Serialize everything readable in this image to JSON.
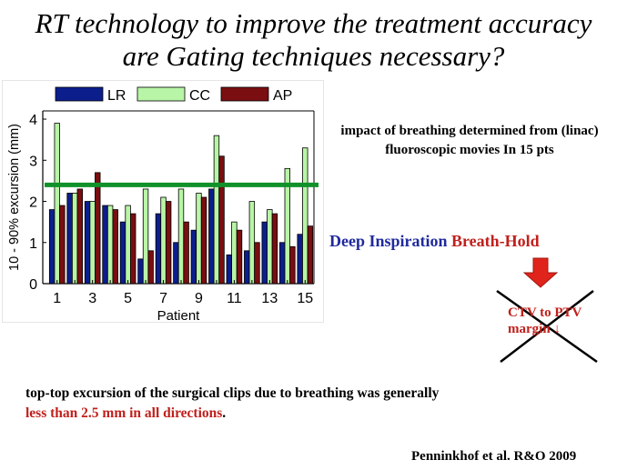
{
  "title": {
    "line1": "RT technology to improve the treatment accuracy",
    "line2": "are Gating techniques necessary?"
  },
  "impact_note": "impact of  breathing  determined from (linac) fluoroscopic movies In 15 pts",
  "dibh": {
    "part1": "Deep Inspiration",
    "part2": "Breath-Hold"
  },
  "ctv_note": "CTV to PTV margin ↓",
  "excursion_note": {
    "part1": "top-top excursion of the surgical clips due to breathing was generally",
    "part2": "less than 2.5 mm in all directions",
    "part3": "."
  },
  "reference": "Penninkhof et al. R&O 2009",
  "colors": {
    "lr": "#0b1e8c",
    "cc": "#b8f5a6",
    "ap": "#7a0e10",
    "threshold_line": "#10912a",
    "red_text": "#c0201c",
    "blue_text": "#1f2a9c",
    "arrow": "#e0241b"
  },
  "chart_data": {
    "type": "bar",
    "xlabel": "Patient",
    "ylabel": "10 - 90% excursion (mm)",
    "ylim": [
      0,
      4.2
    ],
    "yticks": [
      0,
      1,
      2,
      3,
      4
    ],
    "categories": [
      1,
      2,
      3,
      4,
      5,
      6,
      7,
      8,
      9,
      10,
      11,
      12,
      13,
      14,
      15
    ],
    "xtick_labels": [
      "1",
      "",
      "3",
      "",
      "5",
      "",
      "7",
      "",
      "9",
      "",
      "11",
      "",
      "13",
      "",
      "15"
    ],
    "legend_position": "top",
    "threshold": 2.4,
    "series": [
      {
        "name": "LR",
        "values": [
          1.8,
          2.2,
          2.0,
          1.9,
          1.5,
          0.6,
          1.7,
          1.0,
          1.3,
          2.3,
          0.7,
          0.8,
          1.5,
          1.0,
          1.2
        ]
      },
      {
        "name": "CC",
        "values": [
          3.9,
          2.2,
          2.0,
          1.9,
          1.9,
          2.3,
          2.1,
          2.3,
          2.2,
          3.6,
          1.5,
          2.0,
          1.8,
          2.8,
          3.3
        ]
      },
      {
        "name": "AP",
        "values": [
          1.9,
          2.3,
          2.7,
          1.8,
          1.7,
          0.8,
          2.0,
          1.5,
          2.1,
          3.1,
          1.3,
          1.0,
          1.7,
          0.9,
          1.4
        ]
      }
    ]
  }
}
